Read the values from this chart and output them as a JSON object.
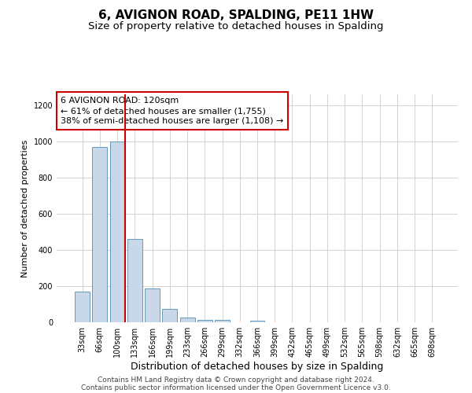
{
  "title": "6, AVIGNON ROAD, SPALDING, PE11 1HW",
  "subtitle": "Size of property relative to detached houses in Spalding",
  "xlabel": "Distribution of detached houses by size in Spalding",
  "ylabel": "Number of detached properties",
  "bar_labels": [
    "33sqm",
    "66sqm",
    "100sqm",
    "133sqm",
    "166sqm",
    "199sqm",
    "233sqm",
    "266sqm",
    "299sqm",
    "332sqm",
    "366sqm",
    "399sqm",
    "432sqm",
    "465sqm",
    "499sqm",
    "532sqm",
    "565sqm",
    "598sqm",
    "632sqm",
    "665sqm",
    "698sqm"
  ],
  "bar_values": [
    170,
    970,
    1000,
    460,
    185,
    75,
    25,
    15,
    13,
    0,
    10,
    0,
    0,
    0,
    0,
    0,
    0,
    0,
    0,
    0,
    0
  ],
  "bar_color": "#c8d8e8",
  "bar_edge_color": "#6699bb",
  "vline_color": "#cc0000",
  "annotation_line1": "6 AVIGNON ROAD: 120sqm",
  "annotation_line2": "← 61% of detached houses are smaller (1,755)",
  "annotation_line3": "38% of semi-detached houses are larger (1,108) →",
  "annotation_box_color": "#ffffff",
  "annotation_box_edge": "#cc0000",
  "ylim": [
    0,
    1260
  ],
  "yticks": [
    0,
    200,
    400,
    600,
    800,
    1000,
    1200
  ],
  "grid_color": "#cccccc",
  "footnote1": "Contains HM Land Registry data © Crown copyright and database right 2024.",
  "footnote2": "Contains public sector information licensed under the Open Government Licence v3.0.",
  "title_fontsize": 11,
  "subtitle_fontsize": 9.5,
  "xlabel_fontsize": 9,
  "ylabel_fontsize": 8,
  "tick_fontsize": 7,
  "annotation_fontsize": 8,
  "footnote_fontsize": 6.5
}
